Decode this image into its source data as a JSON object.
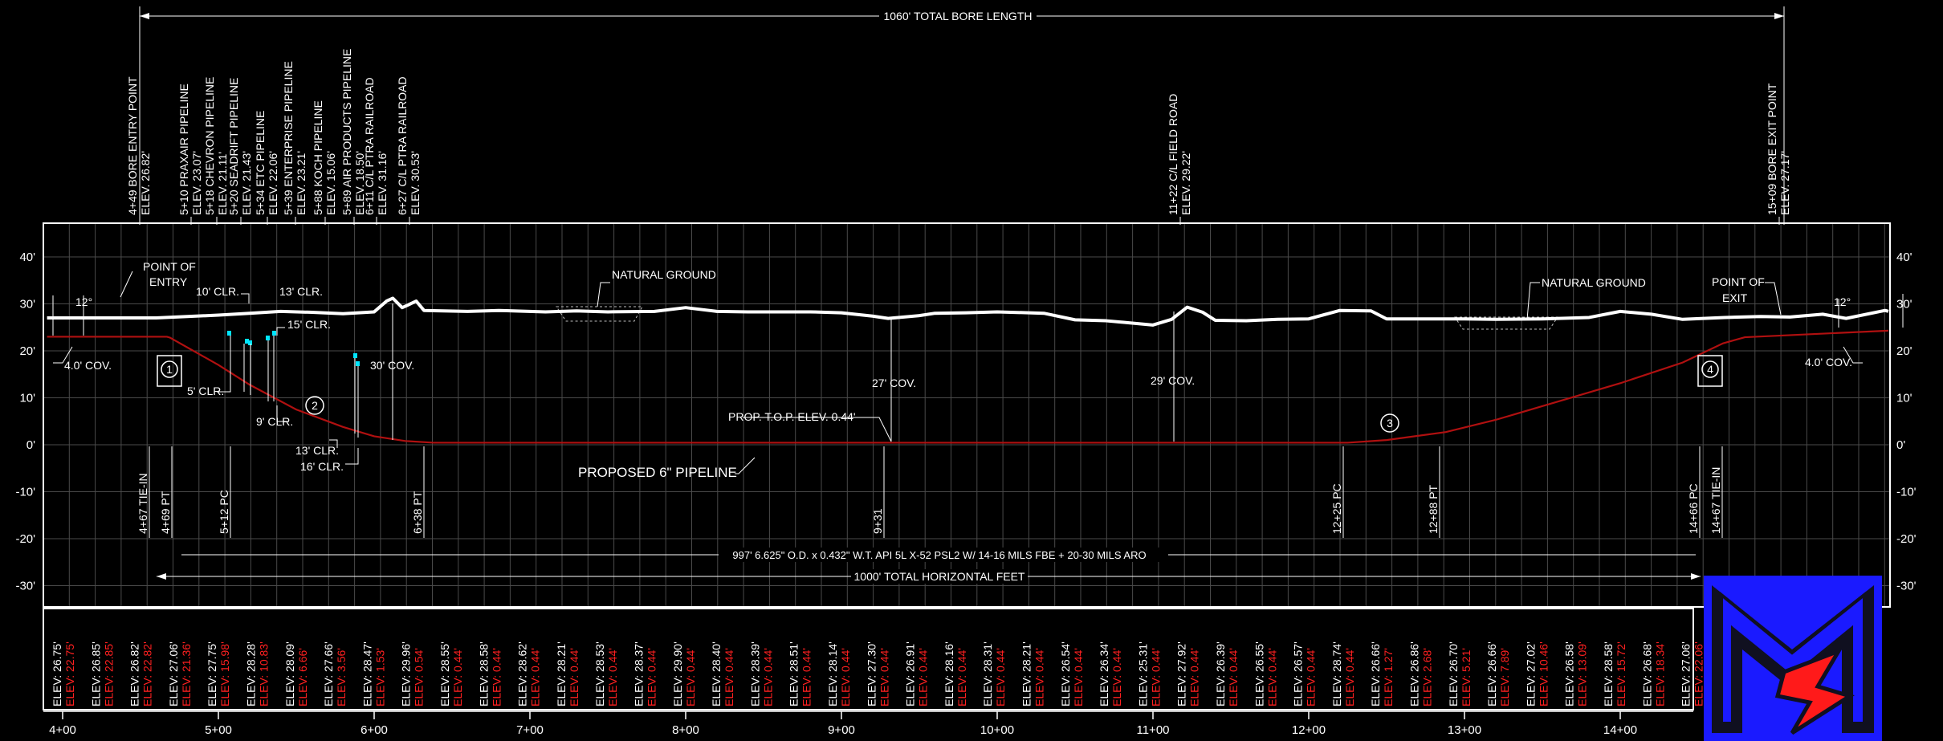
{
  "header": {
    "total_bore_length": "1060' TOTAL BORE LENGTH"
  },
  "callouts": [
    {
      "station": "4+49",
      "lines": [
        "4+49  BORE  ENTRY  POINT",
        "ELEV.  26.82'"
      ]
    },
    {
      "station": "5+10",
      "lines": [
        "5+10  PRAXAIR  PIPELINE",
        "ELEV.  23.07'"
      ]
    },
    {
      "station": "5+18",
      "lines": [
        "5+18  CHEVRON  PIPELINE",
        "ELEV.  21.11'"
      ]
    },
    {
      "station": "5+20",
      "lines": [
        "5+20  SEADRIFT  PIPELINE",
        "ELEV.  21.43'"
      ]
    },
    {
      "station": "5+34",
      "lines": [
        "5+34  ETC  PIPELINE",
        "ELEV.  22.06'"
      ]
    },
    {
      "station": "5+39",
      "lines": [
        "5+39  ENTERPRISE  PIPELINE",
        "ELEV.  23.21'"
      ]
    },
    {
      "station": "5+88",
      "lines": [
        "5+88  KOCH  PIPELINE",
        "ELEV.  15.06'"
      ]
    },
    {
      "station": "5+89",
      "lines": [
        "5+89  AIR  PRODUCTS  PIPELINE",
        "ELEV.  18.50'"
      ]
    },
    {
      "station": "6+11",
      "lines": [
        "6+11  C/L  PTRA  RAILROAD",
        "ELEV.  31.16'"
      ]
    },
    {
      "station": "6+27",
      "lines": [
        "6+27  C/L  PTRA  RAILROAD",
        "ELEV.  30.53'"
      ]
    },
    {
      "station": "11+22",
      "lines": [
        "11+22  C/L  FIELD  ROAD",
        "ELEV.  29.22'"
      ]
    },
    {
      "station": "15+09",
      "lines": [
        "15+09  BORE  EXIT  POINT",
        "ELEV.  27.17'"
      ]
    }
  ],
  "elevation_axis": {
    "ticks": [
      40,
      30,
      20,
      10,
      0,
      -10,
      -20,
      -30
    ],
    "labels": [
      "40'",
      "30'",
      "20'",
      "10'",
      "0'",
      "-10'",
      "-20'",
      "-30'"
    ]
  },
  "station_axis": {
    "ticks": [
      4,
      5,
      6,
      7,
      8,
      9,
      10,
      11,
      12,
      13,
      14
    ],
    "labels": [
      "4+00",
      "5+00",
      "6+00",
      "7+00",
      "8+00",
      "9+00",
      "10+00",
      "11+00",
      "12+00",
      "13+00",
      "14+00"
    ]
  },
  "annotations": {
    "point_of_entry": [
      "POINT OF",
      "ENTRY"
    ],
    "point_of_exit": [
      "POINT OF",
      "EXIT"
    ],
    "natural_ground_1": "NATURAL GROUND",
    "natural_ground_2": "NATURAL GROUND",
    "angle_entry": "12°",
    "angle_exit": "12°",
    "cov_entry": "4.0' COV.",
    "cov_exit": "4.0' COV.",
    "cov_30": "30' COV.",
    "cov_27": "27' COV.",
    "cov_29": "29' COV.",
    "clr_10": "10' CLR.",
    "clr_13_top": "13' CLR.",
    "clr_15": "15' CLR.",
    "clr_5": "5' CLR.",
    "clr_9": "9' CLR.",
    "clr_13_bottom": "13' CLR.",
    "clr_16": "16' CLR.",
    "prop_top": "PROP. T.O.P. ELEV. 0.44'",
    "proposed_pipeline": "PROPOSED 6\" PIPELINE",
    "pipe_spec": "997' 6.625\" O.D. x 0.432\" W.T. API 5L X-52 PSL2 W/ 14-16 MILS FBE + 20-30 MILS ARO",
    "total_horizontal": "1000' TOTAL HORIZONTAL FEET"
  },
  "markers": [
    {
      "id": "1",
      "label": "1"
    },
    {
      "id": "2",
      "label": "2"
    },
    {
      "id": "3",
      "label": "3"
    },
    {
      "id": "4",
      "label": "4"
    }
  ],
  "station_points": [
    {
      "station": 4.67,
      "label": "4+67  TIE-IN"
    },
    {
      "station": 4.69,
      "label": "4+69  PT"
    },
    {
      "station": 5.12,
      "label": "5+12  PC"
    },
    {
      "station": 6.38,
      "label": "6+38  PT"
    },
    {
      "station": 9.31,
      "label": "9+31"
    },
    {
      "station": 12.25,
      "label": "12+25  PC"
    },
    {
      "station": 12.88,
      "label": "12+88  PT"
    },
    {
      "station": 14.66,
      "label": "14+66  PC"
    },
    {
      "station": 14.67,
      "label": "14+67  TIE-IN"
    }
  ],
  "elevation_table": {
    "ground": [
      "ELEV: 26.75'",
      "ELEV: 26.85'",
      "ELEV: 26.82'",
      "ELEV: 27.06'",
      "ELEV: 27.75'",
      "ELEV: 28.28'",
      "ELEV: 28.09'",
      "ELEV: 27.66'",
      "ELEV: 28.47'",
      "ELEV: 29.96'",
      "ELEV: 28.55'",
      "ELEV: 28.58'",
      "ELEV: 28.62'",
      "ELEV: 28.21'",
      "ELEV: 28.53'",
      "ELEV: 28.37'",
      "ELEV: 29.90'",
      "ELEV: 28.40'",
      "ELEV: 28.39'",
      "ELEV: 28.51'",
      "ELEV: 28.14'",
      "ELEV: 27.30'",
      "ELEV: 26.91'",
      "ELEV: 28.16'",
      "ELEV: 28.31'",
      "ELEV: 28.21'",
      "ELEV: 26.54'",
      "ELEV: 26.34'",
      "ELEV: 25.31'",
      "ELEV: 27.92'",
      "ELEV: 26.39'",
      "ELEV: 26.55'",
      "ELEV: 26.57'",
      "ELEV: 28.74'",
      "ELEV: 26.66'",
      "ELEV: 26.86'",
      "ELEV: 26.70'",
      "ELEV: 26.66'",
      "ELEV: 27.02'",
      "ELEV: 26.58'",
      "ELEV: 28.58'",
      "ELEV: 26.68'",
      "ELEV: 27.06'"
    ],
    "pipe": [
      "ELEV: 22.75'",
      "ELEV: 22.85'",
      "ELEV: 22.82'",
      "ELEV: 21.36'",
      "ELEV: 15.98'",
      "ELEV: 10.83'",
      "ELEV: 6.66'",
      "ELEV: 3.56'",
      "ELEV: 1.53'",
      "ELEV: 0.54'",
      "ELEV: 0.44'",
      "ELEV: 0.44'",
      "ELEV: 0.44'",
      "ELEV: 0.44'",
      "ELEV: 0.44'",
      "ELEV: 0.44'",
      "ELEV: 0.44'",
      "ELEV: 0.44'",
      "ELEV: 0.44'",
      "ELEV: 0.44'",
      "ELEV: 0.44'",
      "ELEV: 0.44'",
      "ELEV: 0.44'",
      "ELEV: 0.44'",
      "ELEV: 0.44'",
      "ELEV: 0.44'",
      "ELEV: 0.44'",
      "ELEV: 0.44'",
      "ELEV: 0.44'",
      "ELEV: 0.44'",
      "ELEV: 0.44'",
      "ELEV: 0.44'",
      "ELEV: 0.44'",
      "ELEV: 0.44'",
      "ELEV: 1.27'",
      "ELEV: 2.68'",
      "ELEV: 5.21'",
      "ELEV: 7.89'",
      "ELEV: 10.46'",
      "ELEV: 13.09'",
      "ELEV: 15.72'",
      "ELEV: 18.34'",
      "ELEV: 22.06'"
    ]
  },
  "profile": {
    "ground": [
      [
        3.9,
        27
      ],
      [
        4.6,
        27
      ],
      [
        4.8,
        27.3
      ],
      [
        5.0,
        27.6
      ],
      [
        5.2,
        28
      ],
      [
        5.4,
        28.4
      ],
      [
        5.6,
        28.2
      ],
      [
        5.8,
        27.9
      ],
      [
        6.0,
        28.3
      ],
      [
        6.08,
        30.6
      ],
      [
        6.12,
        31.2
      ],
      [
        6.18,
        29.2
      ],
      [
        6.22,
        29.8
      ],
      [
        6.27,
        30.6
      ],
      [
        6.32,
        28.6
      ],
      [
        6.6,
        28.4
      ],
      [
        6.8,
        28.6
      ],
      [
        7.1,
        28.3
      ],
      [
        7.3,
        28.5
      ],
      [
        7.5,
        28.3
      ],
      [
        7.8,
        28.4
      ],
      [
        8.0,
        29.2
      ],
      [
        8.2,
        28.4
      ],
      [
        8.4,
        28.3
      ],
      [
        8.8,
        28.3
      ],
      [
        9.0,
        28.1
      ],
      [
        9.2,
        27.4
      ],
      [
        9.3,
        26.9
      ],
      [
        9.5,
        27.5
      ],
      [
        9.6,
        28
      ],
      [
        9.8,
        28.1
      ],
      [
        10.0,
        28.3
      ],
      [
        10.3,
        28
      ],
      [
        10.5,
        26.6
      ],
      [
        10.7,
        26.4
      ],
      [
        11.0,
        25.5
      ],
      [
        11.12,
        26.7
      ],
      [
        11.22,
        29.3
      ],
      [
        11.32,
        28.2
      ],
      [
        11.4,
        26.5
      ],
      [
        11.6,
        26.4
      ],
      [
        11.8,
        26.7
      ],
      [
        12.0,
        26.8
      ],
      [
        12.2,
        28.6
      ],
      [
        12.4,
        28.5
      ],
      [
        12.5,
        26.8
      ],
      [
        12.7,
        26.8
      ],
      [
        13.0,
        26.8
      ],
      [
        13.2,
        26.7
      ],
      [
        13.5,
        26.8
      ],
      [
        13.8,
        27.1
      ],
      [
        14.0,
        28.4
      ],
      [
        14.2,
        27.8
      ],
      [
        14.4,
        26.7
      ],
      [
        14.67,
        27.1
      ],
      [
        14.9,
        27.3
      ],
      [
        15.09,
        27.2
      ],
      [
        15.3,
        27.8
      ],
      [
        15.45,
        26.9
      ],
      [
        15.7,
        28.6
      ],
      [
        15.8,
        28.4
      ]
    ],
    "pipe": [
      [
        3.9,
        23
      ],
      [
        4.67,
        23
      ],
      [
        4.69,
        22.8
      ],
      [
        5.0,
        17
      ],
      [
        5.2,
        12.8
      ],
      [
        5.5,
        7.5
      ],
      [
        5.8,
        3.8
      ],
      [
        6.0,
        1.8
      ],
      [
        6.2,
        0.8
      ],
      [
        6.38,
        0.44
      ],
      [
        12.25,
        0.44
      ],
      [
        12.5,
        1.0
      ],
      [
        12.88,
        2.7
      ],
      [
        13.2,
        5.3
      ],
      [
        13.6,
        9.2
      ],
      [
        14.0,
        13.1
      ],
      [
        14.4,
        17.5
      ],
      [
        14.66,
        21.6
      ],
      [
        14.8,
        22.9
      ],
      [
        15.8,
        24.3
      ]
    ]
  },
  "logo": {
    "description_name": "company-logo",
    "colors": {
      "blue": "#1a1aff",
      "red": "#ff1a1a",
      "dark": "#101020"
    }
  },
  "style": {
    "background": "#000000",
    "line": "#ffffff",
    "grid": "#555555",
    "pipe": "#b01010",
    "elev_red": "#ff2020",
    "pipe_marker": "#00e5ff"
  }
}
